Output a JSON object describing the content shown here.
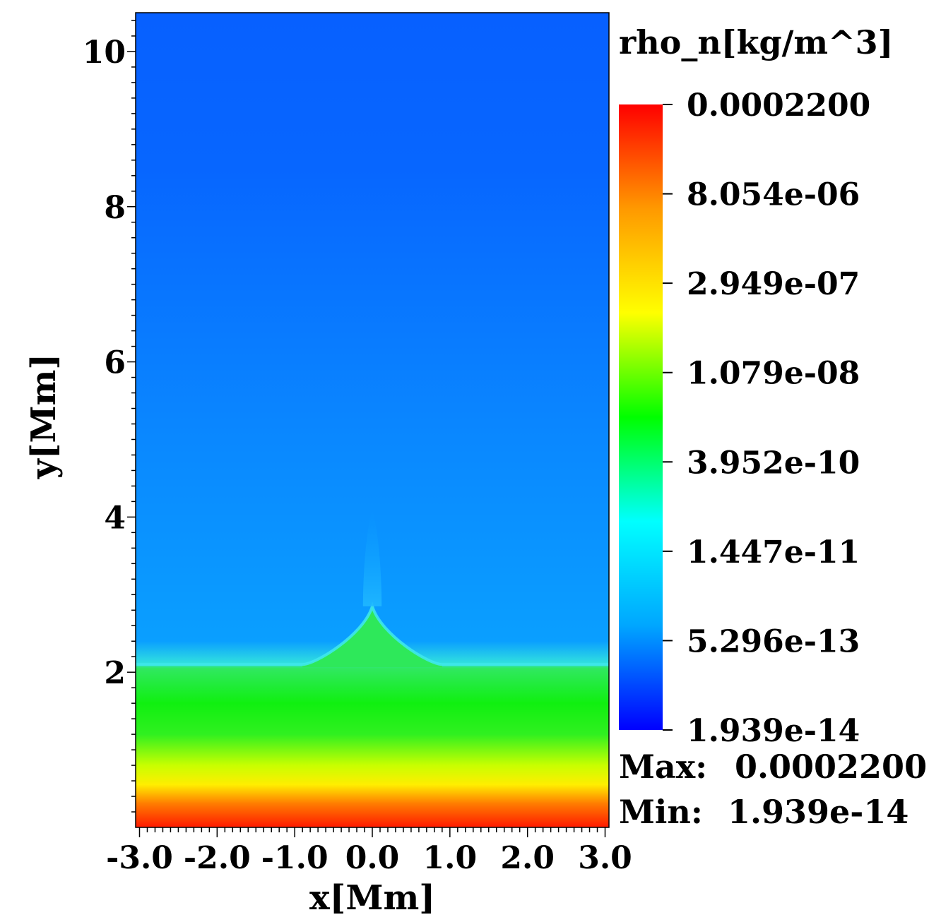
{
  "chart_data": {
    "type": "heatmap",
    "variable": "rho_n[kg/m^3]",
    "xlabel": "x[Mm]",
    "ylabel": "y[Mm]",
    "xlim": [
      -3.05,
      3.05
    ],
    "ylim": [
      0,
      10.5
    ],
    "x_ticks": [
      -3.0,
      -2.0,
      -1.0,
      0.0,
      1.0,
      2.0,
      3.0
    ],
    "x_tick_labels": [
      "-3.0",
      "-2.0",
      "-1.0",
      "0.0",
      "1.0",
      "2.0",
      "3.0"
    ],
    "y_ticks": [
      2,
      4,
      6,
      8,
      10
    ],
    "y_tick_labels": [
      "2",
      "4",
      "6",
      "8",
      "10"
    ],
    "colorbar": {
      "scale": "log",
      "colormap": [
        "#0000ff",
        "#00a6ff",
        "#00ffff",
        "#00ff00",
        "#ffff00",
        "#ff9900",
        "#ff0000"
      ],
      "tick_values": [
        1.939e-14,
        5.296e-13,
        1.447e-11,
        3.952e-10,
        1.079e-08,
        2.949e-07,
        8.054e-06,
        0.00022
      ],
      "tick_labels": [
        "1.939e-14",
        "5.296e-13",
        "1.447e-11",
        "3.952e-10",
        "1.079e-08",
        "2.949e-07",
        "8.054e-06",
        "0.0002200"
      ]
    },
    "max_label": "Max:",
    "max_value": "0.0002200",
    "min_label": "Min:",
    "min_value": "1.939e-14",
    "field_profile": [
      {
        "y": 0.0,
        "color": "#ff1a00"
      },
      {
        "y": 0.3,
        "color": "#ff7a00"
      },
      {
        "y": 0.55,
        "color": "#ffee00"
      },
      {
        "y": 0.8,
        "color": "#c8ff00"
      },
      {
        "y": 1.2,
        "color": "#30f020"
      },
      {
        "y": 1.6,
        "color": "#10f010"
      },
      {
        "y": 2.05,
        "color": "#30e860"
      },
      {
        "y": 2.12,
        "color": "#30dfe0"
      },
      {
        "y": 2.4,
        "color": "#0a9fff"
      },
      {
        "y": 5.0,
        "color": "#0a88ff"
      },
      {
        "y": 8.5,
        "color": "#0766ff"
      },
      {
        "y": 10.5,
        "color": "#0760ff"
      }
    ],
    "features": [
      {
        "name": "transition-region-bump",
        "x_center": 0.0,
        "y_base": 2.1,
        "y_peak": 2.85,
        "half_width": 0.9
      },
      {
        "name": "jet-column",
        "x_center": 0.0,
        "y_base": 2.85,
        "y_peak": 4.1,
        "half_width": 0.12
      }
    ]
  }
}
